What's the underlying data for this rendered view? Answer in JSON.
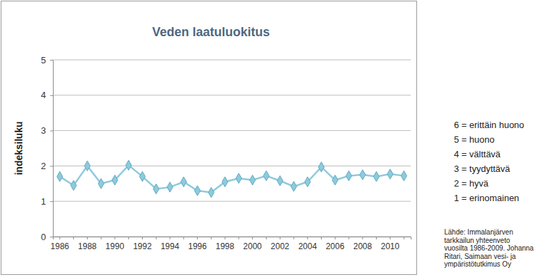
{
  "chart_data": {
    "type": "line",
    "title": "Veden laatuluokitus",
    "y_label": "indeksiluku",
    "categories": [
      "1986",
      null,
      "1988",
      null,
      "1990",
      null,
      "1992",
      null,
      "1994",
      null,
      "1996",
      null,
      "1998",
      null,
      "2000",
      null,
      "2002",
      null,
      "2004",
      null,
      "2006",
      null,
      "2008",
      null,
      "2010",
      null
    ],
    "values": [
      1.7,
      1.45,
      2.0,
      1.5,
      1.6,
      2.02,
      1.7,
      1.35,
      1.4,
      1.55,
      1.3,
      1.25,
      1.55,
      1.65,
      1.6,
      1.72,
      1.58,
      1.42,
      1.55,
      1.97,
      1.6,
      1.72,
      1.75,
      1.7,
      1.77,
      1.72
    ],
    "color": "#8ecadc",
    "marker": "diamond",
    "ylim": [
      0,
      5
    ],
    "yticks": [
      0,
      1,
      2,
      3,
      4,
      5
    ],
    "grid": true,
    "annotations": [
      "6 = erittäin huono",
      "5 = huono",
      "4 = välttävä",
      "3 = tyydyttävä",
      "2 = hyvä",
      "1 = erinomainen"
    ],
    "source": [
      "Lähde: Immalanjärven",
      "tarkkailun yhteenveto",
      "vuosilta 1986-2009. Johanna",
      "Ritari, Saimaan vesi- ja",
      "ympäristötutkimus Oy"
    ]
  }
}
